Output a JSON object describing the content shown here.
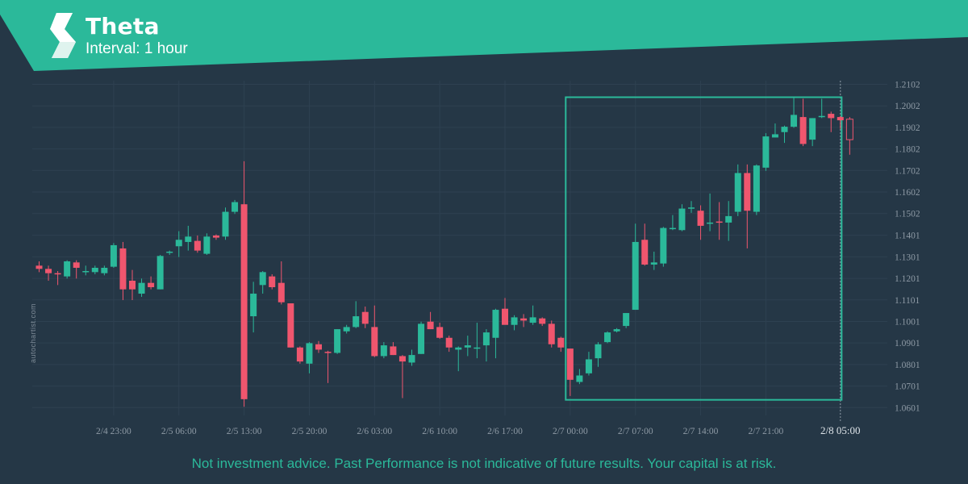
{
  "header": {
    "title": "Theta",
    "interval": "Interval: 1 hour",
    "banner_color": "#2bb99a",
    "logo_icon": "autochartist-logo-icon"
  },
  "watermark": "autochartist.com",
  "disclaimer": "Not investment advice. Past Performance is not indicative of future results. Your capital is at risk.",
  "colors": {
    "background": "#253746",
    "bullish": "#2bb99a",
    "bearish": "#f0566e",
    "pattern_box": "#2bb99a",
    "axis_text": "#8e9aa5"
  },
  "chart_data": {
    "type": "candlestick",
    "title": "Theta",
    "xlabel": "",
    "ylabel": "",
    "grid": true,
    "ylim": [
      1.0551,
      1.2152
    ],
    "y_ticks": [
      "1.2102",
      "1.2002",
      "1.1902",
      "1.1802",
      "1.1702",
      "1.1602",
      "1.1502",
      "1.1401",
      "1.1301",
      "1.1201",
      "1.1101",
      "1.1001",
      "1.0901",
      "1.0801",
      "1.0701",
      "1.0601"
    ],
    "x_ticks": [
      {
        "index": 8,
        "label": "2/4 23:00"
      },
      {
        "index": 15,
        "label": "2/5 06:00"
      },
      {
        "index": 22,
        "label": "2/5 13:00"
      },
      {
        "index": 29,
        "label": "2/5 20:00"
      },
      {
        "index": 36,
        "label": "2/6 03:00"
      },
      {
        "index": 43,
        "label": "2/6 10:00"
      },
      {
        "index": 50,
        "label": "2/6 17:00"
      },
      {
        "index": 57,
        "label": "2/7 00:00"
      },
      {
        "index": 64,
        "label": "2/7 07:00"
      },
      {
        "index": 71,
        "label": "2/7 14:00"
      },
      {
        "index": 78,
        "label": "2/7 21:00"
      },
      {
        "index": 86,
        "label": "2/8 05:00",
        "highlight": true
      }
    ],
    "pattern_box": {
      "start_index": 56,
      "end_index": 87,
      "high": 1.2042,
      "low": 1.0637
    },
    "candles": [
      {
        "o": 1.126,
        "h": 1.128,
        "l": 1.123,
        "c": 1.1245
      },
      {
        "o": 1.1245,
        "h": 1.126,
        "l": 1.119,
        "c": 1.1225
      },
      {
        "o": 1.1225,
        "h": 1.1235,
        "l": 1.117,
        "c": 1.122
      },
      {
        "o": 1.121,
        "h": 1.1285,
        "l": 1.12,
        "c": 1.128
      },
      {
        "o": 1.1275,
        "h": 1.1285,
        "l": 1.12,
        "c": 1.125
      },
      {
        "o": 1.1235,
        "h": 1.126,
        "l": 1.1215,
        "c": 1.1235
      },
      {
        "o": 1.123,
        "h": 1.126,
        "l": 1.122,
        "c": 1.125
      },
      {
        "o": 1.1225,
        "h": 1.126,
        "l": 1.1215,
        "c": 1.125
      },
      {
        "o": 1.1255,
        "h": 1.1365,
        "l": 1.125,
        "c": 1.1355
      },
      {
        "o": 1.134,
        "h": 1.137,
        "l": 1.11,
        "c": 1.115
      },
      {
        "o": 1.119,
        "h": 1.124,
        "l": 1.11,
        "c": 1.115
      },
      {
        "o": 1.113,
        "h": 1.12,
        "l": 1.1115,
        "c": 1.118
      },
      {
        "o": 1.118,
        "h": 1.121,
        "l": 1.115,
        "c": 1.116
      },
      {
        "o": 1.115,
        "h": 1.131,
        "l": 1.115,
        "c": 1.1305
      },
      {
        "o": 1.132,
        "h": 1.133,
        "l": 1.131,
        "c": 1.1325
      },
      {
        "o": 1.135,
        "h": 1.142,
        "l": 1.13,
        "c": 1.138
      },
      {
        "o": 1.137,
        "h": 1.1445,
        "l": 1.133,
        "c": 1.1395
      },
      {
        "o": 1.1375,
        "h": 1.14,
        "l": 1.132,
        "c": 1.133
      },
      {
        "o": 1.1315,
        "h": 1.141,
        "l": 1.131,
        "c": 1.1395
      },
      {
        "o": 1.14,
        "h": 1.1405,
        "l": 1.138,
        "c": 1.139
      },
      {
        "o": 1.1395,
        "h": 1.153,
        "l": 1.138,
        "c": 1.151
      },
      {
        "o": 1.151,
        "h": 1.1565,
        "l": 1.15,
        "c": 1.1555
      },
      {
        "o": 1.1545,
        "h": 1.1745,
        "l": 1.0605,
        "c": 1.064
      },
      {
        "o": 1.1025,
        "h": 1.1185,
        "l": 1.095,
        "c": 1.113
      },
      {
        "o": 1.117,
        "h": 1.1235,
        "l": 1.113,
        "c": 1.123
      },
      {
        "o": 1.121,
        "h": 1.122,
        "l": 1.115,
        "c": 1.116
      },
      {
        "o": 1.118,
        "h": 1.128,
        "l": 1.108,
        "c": 1.109
      },
      {
        "o": 1.1085,
        "h": 1.1085,
        "l": 1.088,
        "c": 1.088
      },
      {
        "o": 1.088,
        "h": 1.0885,
        "l": 1.0805,
        "c": 1.0815
      },
      {
        "o": 1.0805,
        "h": 1.0905,
        "l": 1.076,
        "c": 1.09
      },
      {
        "o": 1.0895,
        "h": 1.091,
        "l": 1.0855,
        "c": 1.087
      },
      {
        "o": 1.086,
        "h": 1.0865,
        "l": 1.0715,
        "c": 1.0855
      },
      {
        "o": 1.0855,
        "h": 1.0965,
        "l": 1.085,
        "c": 1.0965
      },
      {
        "o": 1.0955,
        "h": 1.0985,
        "l": 1.0945,
        "c": 1.0975
      },
      {
        "o": 1.0975,
        "h": 1.1095,
        "l": 1.097,
        "c": 1.1025
      },
      {
        "o": 1.1045,
        "h": 1.107,
        "l": 1.097,
        "c": 1.099
      },
      {
        "o": 1.0975,
        "h": 1.1075,
        "l": 1.0835,
        "c": 1.084
      },
      {
        "o": 1.084,
        "h": 1.0905,
        "l": 1.083,
        "c": 1.089
      },
      {
        "o": 1.0885,
        "h": 1.0905,
        "l": 1.0845,
        "c": 1.0845
      },
      {
        "o": 1.084,
        "h": 1.0845,
        "l": 1.0645,
        "c": 1.0815
      },
      {
        "o": 1.081,
        "h": 1.087,
        "l": 1.0795,
        "c": 1.0845
      },
      {
        "o": 1.085,
        "h": 1.1,
        "l": 1.085,
        "c": 1.099
      },
      {
        "o": 1.1,
        "h": 1.1045,
        "l": 1.0965,
        "c": 1.0965
      },
      {
        "o": 1.0975,
        "h": 1.0995,
        "l": 1.092,
        "c": 1.0925
      },
      {
        "o": 1.0925,
        "h": 1.0935,
        "l": 1.086,
        "c": 1.088
      },
      {
        "o": 1.087,
        "h": 1.0885,
        "l": 1.077,
        "c": 1.088
      },
      {
        "o": 1.088,
        "h": 1.0935,
        "l": 1.084,
        "c": 1.089
      },
      {
        "o": 1.088,
        "h": 1.0995,
        "l": 1.083,
        "c": 1.088
      },
      {
        "o": 1.089,
        "h": 1.0965,
        "l": 1.0815,
        "c": 1.095
      },
      {
        "o": 1.0925,
        "h": 1.106,
        "l": 1.083,
        "c": 1.1055
      },
      {
        "o": 1.106,
        "h": 1.111,
        "l": 1.099,
        "c": 1.0985
      },
      {
        "o": 1.0985,
        "h": 1.103,
        "l": 1.096,
        "c": 1.102
      },
      {
        "o": 1.1015,
        "h": 1.1035,
        "l": 1.0975,
        "c": 1.1005
      },
      {
        "o": 1.0995,
        "h": 1.1075,
        "l": 1.0985,
        "c": 1.102
      },
      {
        "o": 1.1015,
        "h": 1.102,
        "l": 1.098,
        "c": 1.099
      },
      {
        "o": 1.099,
        "h": 1.1005,
        "l": 1.088,
        "c": 1.0895
      },
      {
        "o": 1.0925,
        "h": 1.093,
        "l": 1.086,
        "c": 1.088
      },
      {
        "o": 1.0875,
        "h": 1.0875,
        "l": 1.0655,
        "c": 1.073
      },
      {
        "o": 1.072,
        "h": 1.078,
        "l": 1.071,
        "c": 1.075
      },
      {
        "o": 1.076,
        "h": 1.086,
        "l": 1.075,
        "c": 1.0825
      },
      {
        "o": 1.083,
        "h": 1.0905,
        "l": 1.079,
        "c": 1.0895
      },
      {
        "o": 1.0905,
        "h": 1.0955,
        "l": 1.09,
        "c": 1.095
      },
      {
        "o": 1.0955,
        "h": 1.097,
        "l": 1.095,
        "c": 1.0965
      },
      {
        "o": 1.098,
        "h": 1.104,
        "l": 1.097,
        "c": 1.104
      },
      {
        "o": 1.1055,
        "h": 1.1455,
        "l": 1.1055,
        "c": 1.137
      },
      {
        "o": 1.138,
        "h": 1.1455,
        "l": 1.126,
        "c": 1.1265
      },
      {
        "o": 1.1265,
        "h": 1.1325,
        "l": 1.124,
        "c": 1.1275
      },
      {
        "o": 1.127,
        "h": 1.144,
        "l": 1.1255,
        "c": 1.1435
      },
      {
        "o": 1.143,
        "h": 1.1495,
        "l": 1.1425,
        "c": 1.1435
      },
      {
        "o": 1.1425,
        "h": 1.1545,
        "l": 1.142,
        "c": 1.1525
      },
      {
        "o": 1.1525,
        "h": 1.156,
        "l": 1.1505,
        "c": 1.153
      },
      {
        "o": 1.1515,
        "h": 1.154,
        "l": 1.138,
        "c": 1.1445
      },
      {
        "o": 1.146,
        "h": 1.1595,
        "l": 1.142,
        "c": 1.146
      },
      {
        "o": 1.1465,
        "h": 1.1555,
        "l": 1.138,
        "c": 1.146
      },
      {
        "o": 1.146,
        "h": 1.156,
        "l": 1.1375,
        "c": 1.149
      },
      {
        "o": 1.151,
        "h": 1.173,
        "l": 1.149,
        "c": 1.169
      },
      {
        "o": 1.169,
        "h": 1.173,
        "l": 1.134,
        "c": 1.1515
      },
      {
        "o": 1.151,
        "h": 1.173,
        "l": 1.1495,
        "c": 1.1725
      },
      {
        "o": 1.1715,
        "h": 1.1875,
        "l": 1.17,
        "c": 1.186
      },
      {
        "o": 1.1855,
        "h": 1.192,
        "l": 1.1855,
        "c": 1.187
      },
      {
        "o": 1.188,
        "h": 1.191,
        "l": 1.183,
        "c": 1.1905
      },
      {
        "o": 1.1905,
        "h": 1.204,
        "l": 1.19,
        "c": 1.196
      },
      {
        "o": 1.195,
        "h": 1.2035,
        "l": 1.1815,
        "c": 1.1825
      },
      {
        "o": 1.1845,
        "h": 1.1945,
        "l": 1.1815,
        "c": 1.1945
      },
      {
        "o": 1.195,
        "h": 1.2035,
        "l": 1.1945,
        "c": 1.1955
      },
      {
        "o": 1.1965,
        "h": 1.1975,
        "l": 1.188,
        "c": 1.1945
      },
      {
        "o": 1.195,
        "h": 1.1955,
        "l": 1.1895,
        "c": 1.1935
      },
      {
        "o": 1.194,
        "h": 1.195,
        "l": 1.1775,
        "c": 1.1845
      }
    ]
  }
}
